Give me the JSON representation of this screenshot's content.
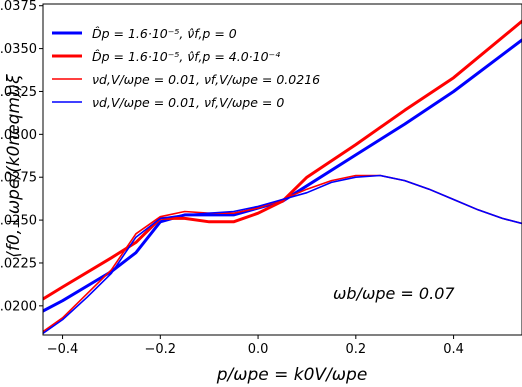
{
  "chart_data": {
    "type": "line",
    "xlabel": "p/ωpe = k0V/ωpe",
    "ylabel": "⟨f0,⊥ωpe/(k0neqm)⟩ξ",
    "xlim": [
      -0.44,
      0.54
    ],
    "ylim": [
      0.0183,
      0.0376
    ],
    "xticks": [
      -0.4,
      -0.2,
      0.0,
      0.2,
      0.4
    ],
    "xtick_labels": [
      "−0.4",
      "−0.2",
      "0.0",
      "0.2",
      "0.4"
    ],
    "yticks": [
      0.02,
      0.0225,
      0.025,
      0.0275,
      0.03,
      0.0325,
      0.035,
      0.0375
    ],
    "ytick_labels": [
      "0.0200",
      "0.0225",
      "0.0250",
      "0.0275",
      "0.0300",
      "0.0325",
      "0.0350",
      "0.0375"
    ],
    "grid": false,
    "legend_position": "top-left",
    "annotation": "ωb/ωpe = 0.07",
    "series": [
      {
        "name": "D̂p = 1.6·10⁻⁵, ν̂f,p = 0",
        "color": "#0000ff",
        "width": "thick",
        "x": [
          -0.44,
          -0.4,
          -0.3,
          -0.25,
          -0.2,
          -0.15,
          -0.1,
          -0.05,
          0.0,
          0.05,
          0.1,
          0.2,
          0.3,
          0.4,
          0.54
        ],
        "y": [
          0.0197,
          0.0203,
          0.022,
          0.0231,
          0.0249,
          0.0253,
          0.0253,
          0.0253,
          0.0257,
          0.0261,
          0.027,
          0.0288,
          0.0306,
          0.0325,
          0.0355
        ]
      },
      {
        "name": "D̂p = 1.6·10⁻⁵, ν̂f,p = 4.0·10⁻⁴",
        "color": "#ff0000",
        "width": "thick",
        "x": [
          -0.44,
          -0.4,
          -0.3,
          -0.25,
          -0.2,
          -0.15,
          -0.1,
          -0.05,
          0.0,
          0.05,
          0.1,
          0.2,
          0.3,
          0.4,
          0.54
        ],
        "y": [
          0.0204,
          0.0211,
          0.0228,
          0.0237,
          0.0251,
          0.0251,
          0.0249,
          0.0249,
          0.0254,
          0.0261,
          0.0275,
          0.0294,
          0.0314,
          0.0333,
          0.0366
        ]
      },
      {
        "name": "νd,V/ωpe = 0.01, νf,V/ωpe = 0.0216",
        "color": "#ff0000",
        "width": "thin",
        "x": [
          -0.44,
          -0.4,
          -0.35,
          -0.3,
          -0.25,
          -0.2,
          -0.15,
          -0.1,
          -0.05,
          0.0,
          0.05,
          0.1,
          0.15,
          0.2,
          0.25,
          0.3,
          0.35,
          0.4,
          0.45,
          0.5,
          0.54
        ],
        "y": [
          0.0185,
          0.0193,
          0.0207,
          0.0221,
          0.0242,
          0.0252,
          0.0255,
          0.0254,
          0.0254,
          0.0257,
          0.0262,
          0.0268,
          0.0273,
          0.0276,
          0.0276,
          0.0273,
          0.0268,
          0.0262,
          0.0256,
          0.0251,
          0.0248
        ]
      },
      {
        "name": "νd,V/ωpe = 0.01, νf,V/ωpe = 0",
        "color": "#0000ff",
        "width": "thin",
        "x": [
          -0.44,
          -0.4,
          -0.35,
          -0.3,
          -0.25,
          -0.2,
          -0.15,
          -0.1,
          -0.05,
          0.0,
          0.05,
          0.1,
          0.15,
          0.2,
          0.25,
          0.3,
          0.35,
          0.4,
          0.45,
          0.5,
          0.54
        ],
        "y": [
          0.0184,
          0.0192,
          0.0205,
          0.0219,
          0.024,
          0.0251,
          0.0253,
          0.0254,
          0.0255,
          0.0258,
          0.0262,
          0.0266,
          0.0272,
          0.0275,
          0.0276,
          0.0273,
          0.0268,
          0.0262,
          0.0256,
          0.0251,
          0.0248
        ]
      }
    ]
  }
}
